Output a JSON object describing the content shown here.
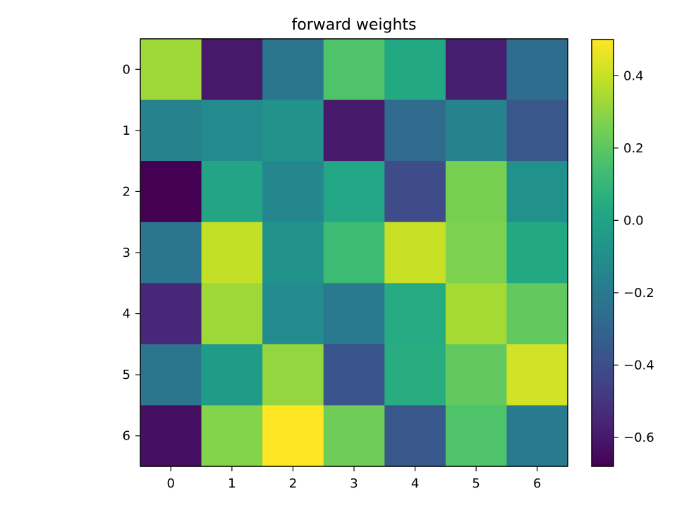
{
  "chart_data": {
    "type": "heatmap",
    "title": "forward weights",
    "x_ticks": [
      "0",
      "1",
      "2",
      "3",
      "4",
      "5",
      "6"
    ],
    "y_ticks": [
      "0",
      "1",
      "2",
      "3",
      "4",
      "5",
      "6"
    ],
    "colormap": "viridis",
    "vmin": -0.68,
    "vmax": 0.5,
    "colorbar_ticks": [
      {
        "value": 0.4,
        "label": "0.4"
      },
      {
        "value": 0.2,
        "label": "0.2"
      },
      {
        "value": 0.0,
        "label": "0.0"
      },
      {
        "value": -0.2,
        "label": "−0.2"
      },
      {
        "value": -0.4,
        "label": "−0.4"
      },
      {
        "value": -0.6,
        "label": "−0.6"
      }
    ],
    "values": [
      [
        0.33,
        -0.6,
        -0.22,
        0.17,
        0.03,
        -0.58,
        -0.26
      ],
      [
        -0.16,
        -0.12,
        -0.08,
        -0.6,
        -0.27,
        -0.16,
        -0.36
      ],
      [
        -0.68,
        0.01,
        -0.14,
        0.02,
        -0.41,
        0.26,
        -0.09
      ],
      [
        -0.22,
        0.39,
        -0.08,
        0.12,
        0.4,
        0.27,
        0.03
      ],
      [
        -0.55,
        0.33,
        -0.12,
        -0.2,
        0.04,
        0.34,
        0.21
      ],
      [
        -0.22,
        -0.04,
        0.31,
        -0.37,
        0.05,
        0.21,
        0.42
      ],
      [
        -0.63,
        0.28,
        0.5,
        0.24,
        -0.36,
        0.17,
        -0.2
      ]
    ]
  }
}
